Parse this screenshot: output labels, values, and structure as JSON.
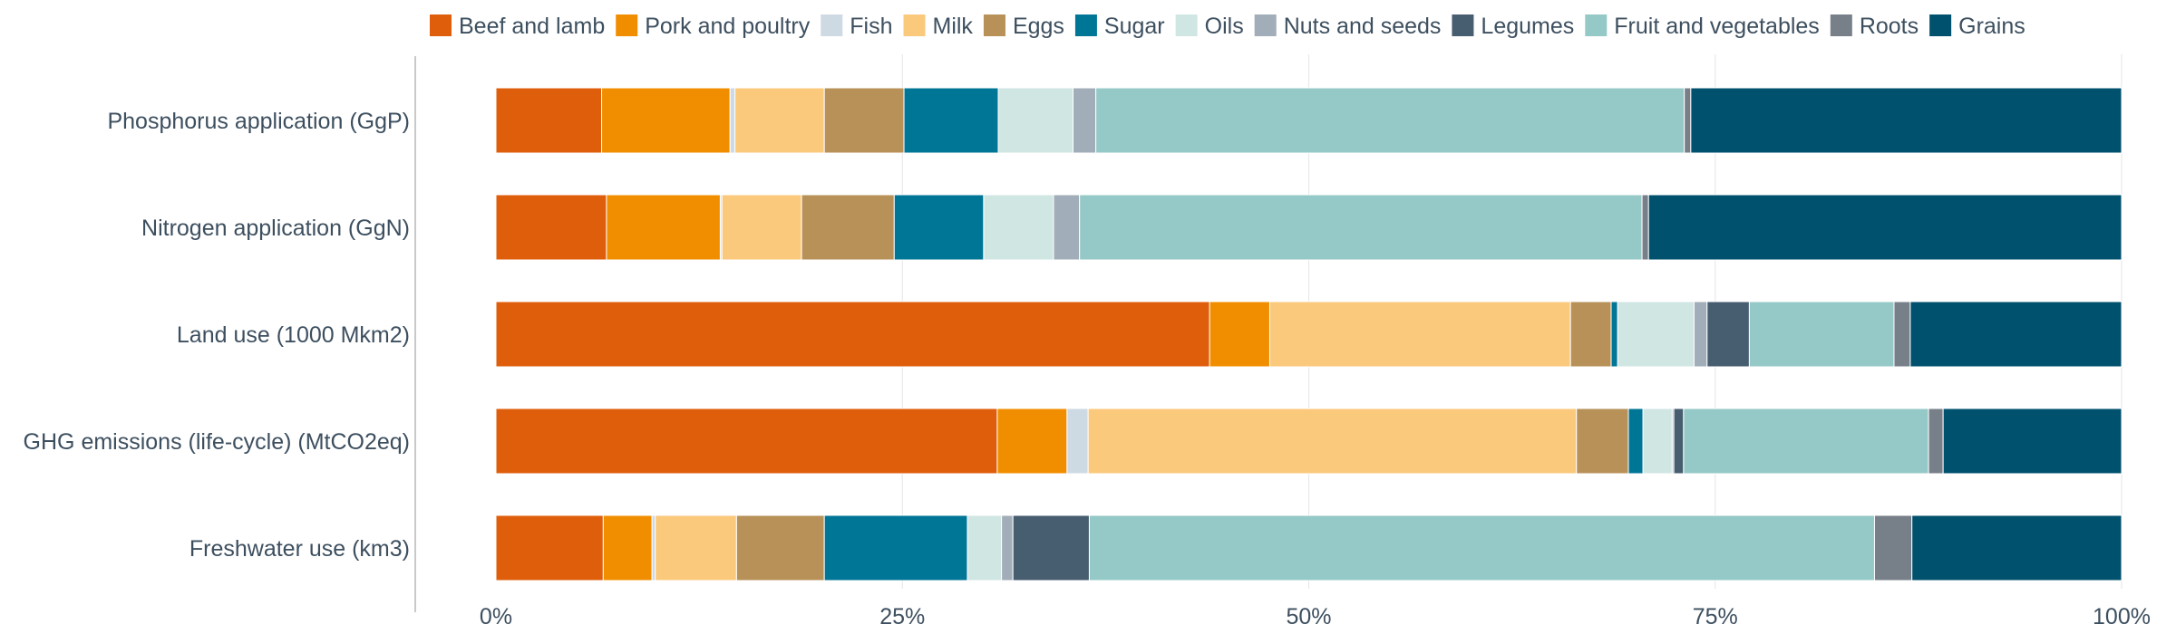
{
  "chart_data": {
    "type": "bar",
    "orientation": "horizontal",
    "stacked": true,
    "normalized": true,
    "categories": [
      "Phosphorus application (GgP)",
      "Nitrogen application (GgN)",
      "Land use (1000 Mkm2)",
      "GHG emissions (life-cycle) (MtCO2eq)",
      "Freshwater use (km3)"
    ],
    "series": [
      {
        "name": "Beef and lamb",
        "color": "#df5e0b",
        "values": [
          6.5,
          6.8,
          43.9,
          30.9,
          6.6
        ]
      },
      {
        "name": "Pork and poultry",
        "color": "#f18e00",
        "values": [
          7.9,
          7.0,
          3.7,
          4.3,
          3.0
        ]
      },
      {
        "name": "Fish",
        "color": "#cdd9e3",
        "values": [
          0.3,
          0.1,
          0.0,
          1.3,
          0.2
        ]
      },
      {
        "name": "Milk",
        "color": "#fbc97c",
        "values": [
          5.5,
          4.9,
          18.5,
          30.1,
          5.0
        ]
      },
      {
        "name": "Eggs",
        "color": "#b79158",
        "values": [
          4.9,
          5.7,
          2.5,
          3.2,
          5.4
        ]
      },
      {
        "name": "Sugar",
        "color": "#007697",
        "values": [
          5.8,
          5.5,
          0.4,
          0.9,
          8.8
        ]
      },
      {
        "name": "Oils",
        "color": "#d0e6e3",
        "values": [
          4.6,
          4.3,
          4.7,
          1.8,
          2.1
        ]
      },
      {
        "name": "Nuts and seeds",
        "color": "#a1adb8",
        "values": [
          1.4,
          1.6,
          0.8,
          0.1,
          0.7
        ]
      },
      {
        "name": "Legumes",
        "color": "#475d70",
        "values": [
          0.0,
          0.0,
          2.6,
          0.6,
          4.7
        ]
      },
      {
        "name": "Fruit and vegetables",
        "color": "#95c9c7",
        "values": [
          36.2,
          34.6,
          8.9,
          15.1,
          48.3
        ]
      },
      {
        "name": "Roots",
        "color": "#777f88",
        "values": [
          0.4,
          0.4,
          1.0,
          0.9,
          2.3
        ]
      },
      {
        "name": "Grains",
        "color": "#00516d",
        "values": [
          26.5,
          29.1,
          13.0,
          11.0,
          12.9
        ]
      }
    ],
    "xlim": [
      0,
      100
    ],
    "x_ticks": [
      0,
      25,
      50,
      75,
      100
    ],
    "x_tick_labels": [
      "0%",
      "25%",
      "50%",
      "75%",
      "100%"
    ],
    "xlabel": "",
    "ylabel": "",
    "title": "",
    "legend_position": "top",
    "grid": "vertical"
  }
}
